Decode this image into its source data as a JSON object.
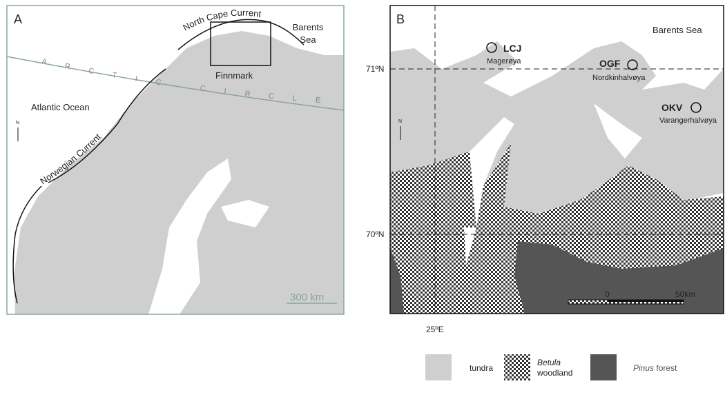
{
  "panel_a": {
    "label": "A",
    "north_cape_current": "North Cape Current",
    "barents_sea": [
      "Barents",
      "Sea"
    ],
    "arctic_circle": "ARCTIC CIRCLE",
    "finnmark": "Finnmark",
    "atlantic_ocean": "Atlantic Ocean",
    "north": "N",
    "norwegian_current": "Norwegian Current",
    "scale": "300 km"
  },
  "panel_b": {
    "label": "B",
    "barents_sea": "Barents Sea",
    "sites": [
      {
        "code": "LCJ",
        "place": "Magerøya"
      },
      {
        "code": "OGF",
        "place": "Nordkinhalvøya"
      },
      {
        "code": "OKV",
        "place": "Varangerhalvøya"
      }
    ],
    "lat_71": "71ºN",
    "lat_70": "70ºN",
    "lon_25": "25ºE",
    "north": "N",
    "scale_start": "0",
    "scale_end": "50km"
  },
  "legend": {
    "tundra": "tundra",
    "betula": [
      "Betula",
      "woodland"
    ],
    "pinus": [
      "Pinus",
      " forest"
    ]
  }
}
